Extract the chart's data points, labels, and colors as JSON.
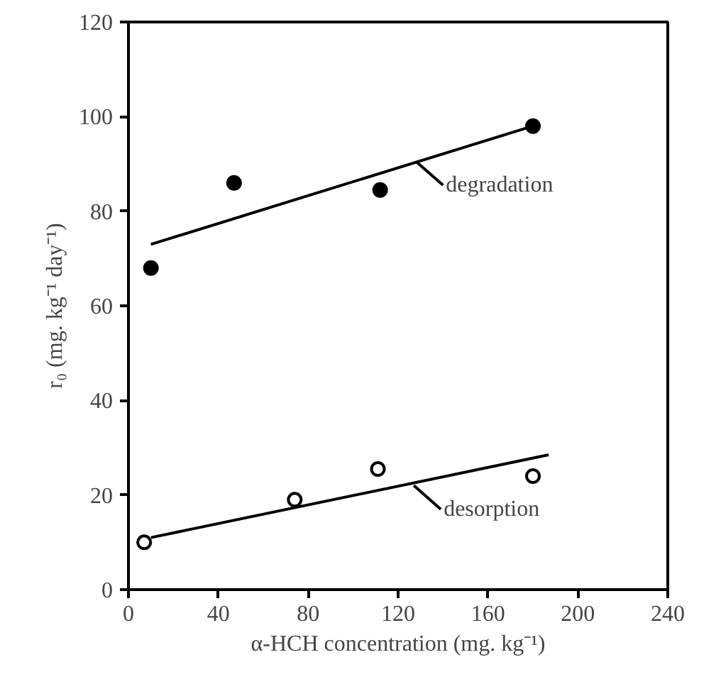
{
  "chart_data": {
    "type": "scatter",
    "xlabel": "α-HCH concentration (mg. kg⁻¹)",
    "ylabel": "r₀ (mg. kg⁻¹ day⁻¹)",
    "xlim": [
      0,
      240
    ],
    "ylim": [
      0,
      120
    ],
    "xticks": [
      0,
      40,
      80,
      120,
      160,
      200,
      240
    ],
    "yticks": [
      0,
      20,
      40,
      60,
      80,
      100,
      120
    ],
    "grid": false,
    "series": [
      {
        "color": "#000000",
        "marker": "circle",
        "x": [
          10,
          47,
          112,
          180
        ],
        "values": [
          68,
          86,
          84.5,
          98
        ]
      },
      {
        "type": "line",
        "marker": "none",
        "color": "#000000",
        "x": [
          10,
          180
        ],
        "values": [
          73,
          98
        ]
      },
      {
        "color": "#ffffff",
        "marker": "circle",
        "x": [
          7,
          74,
          111,
          180
        ],
        "values": [
          10,
          19,
          25.5,
          24
        ]
      },
      {
        "type": "line",
        "marker": "none",
        "color": "#000000",
        "x": [
          10,
          187
        ],
        "values": [
          11,
          28.5
        ]
      }
    ],
    "annotations": [
      {
        "text": "degradation",
        "x": 128,
        "y": 90.5
      },
      {
        "text": "desorption",
        "x": 127,
        "y": 22
      }
    ]
  }
}
